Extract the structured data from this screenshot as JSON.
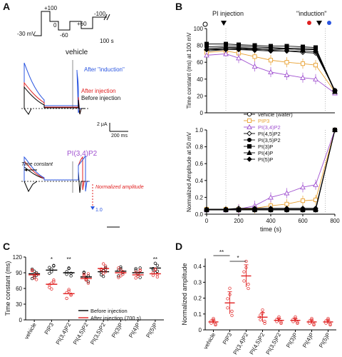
{
  "panels": {
    "A": {
      "label": "A",
      "protocol": {
        "labels": [
          "+100",
          "-30 mV",
          "0",
          "-60",
          "+60",
          "-100",
          "100 s"
        ]
      },
      "vehicle_title": "vehicle",
      "pip2_title": "PI(3,4)P2",
      "legend": {
        "after_induction": "After \"induction\"",
        "after_injection": "After injection",
        "before_injection": "Before injection"
      },
      "scale": {
        "current": "2 μA",
        "time": "200 ms"
      },
      "time_constant_label": "Time constant",
      "normalized_label": "Normalized amplitude",
      "marker_1": "1.0"
    },
    "B": {
      "label": "B",
      "pi_injection": "PI injection",
      "induction": "\"induction\""
    },
    "C": {
      "label": "C"
    },
    "D": {
      "label": "D"
    }
  },
  "colors": {
    "black": "#000000",
    "red": "#e02020",
    "blue": "#2a55e0",
    "orange": "#e8a030",
    "purple": "#a050d0"
  },
  "chart_data": [
    {
      "type": "line",
      "panel": "B-top",
      "xlabel": "",
      "ylabel": "Time constant (ms) at 100 mV",
      "xlim": [
        0,
        800
      ],
      "ylim": [
        0,
        120
      ],
      "x": [
        0,
        120,
        200,
        300,
        400,
        500,
        600,
        680,
        800
      ],
      "series": [
        {
          "name": "vehicle (water)",
          "values": [
            88,
            90,
            91,
            90,
            90,
            91,
            90,
            90,
            32
          ]
        },
        {
          "name": "PIP3",
          "values": [
            86,
            88,
            85,
            80,
            75,
            72,
            70,
            68,
            30
          ]
        },
        {
          "name": "PI(3,4)P2",
          "values": [
            82,
            84,
            78,
            66,
            58,
            54,
            50,
            48,
            28
          ]
        },
        {
          "name": "PI(4,5)P2",
          "values": [
            90,
            92,
            92,
            91,
            89,
            88,
            86,
            85,
            32
          ]
        },
        {
          "name": "PI(3,5)P2",
          "values": [
            94,
            95,
            95,
            94,
            93,
            92,
            92,
            91,
            30
          ]
        },
        {
          "name": "PI(3)P",
          "values": [
            98,
            98,
            97,
            96,
            95,
            95,
            94,
            93,
            31
          ]
        },
        {
          "name": "PI(4)P",
          "values": [
            92,
            93,
            93,
            92,
            92,
            91,
            90,
            90,
            30
          ]
        },
        {
          "name": "PI(5)P",
          "values": [
            90,
            90,
            90,
            89,
            88,
            88,
            88,
            87,
            31
          ]
        }
      ],
      "yticks": [
        "0",
        "20",
        "40",
        "60",
        "80",
        "100"
      ]
    },
    {
      "type": "line",
      "panel": "B-bottom",
      "xlabel": "time (s)",
      "ylabel": "Normalized Amplitude at 50 mV",
      "xlim": [
        0,
        800
      ],
      "ylim": [
        0,
        1.0
      ],
      "x": [
        0,
        120,
        200,
        300,
        400,
        500,
        600,
        680,
        800
      ],
      "series": [
        {
          "name": "vehicle (water)",
          "values": [
            0.06,
            0.06,
            0.06,
            0.06,
            0.06,
            0.06,
            0.06,
            0.06,
            1.0
          ]
        },
        {
          "name": "PIP3",
          "values": [
            0.06,
            0.06,
            0.06,
            0.07,
            0.1,
            0.12,
            0.16,
            0.17,
            1.0
          ]
        },
        {
          "name": "PI(3,4)P2",
          "values": [
            0.05,
            0.05,
            0.06,
            0.1,
            0.2,
            0.25,
            0.32,
            0.35,
            1.0
          ]
        },
        {
          "name": "PI(4,5)P2",
          "values": [
            0.06,
            0.06,
            0.07,
            0.07,
            0.07,
            0.07,
            0.07,
            0.07,
            1.0
          ]
        },
        {
          "name": "PI(3,5)P2",
          "values": [
            0.05,
            0.05,
            0.05,
            0.06,
            0.06,
            0.06,
            0.06,
            0.06,
            1.0
          ]
        },
        {
          "name": "PI(3)P",
          "values": [
            0.05,
            0.05,
            0.05,
            0.05,
            0.05,
            0.05,
            0.05,
            0.05,
            1.0
          ]
        },
        {
          "name": "PI(4)P",
          "values": [
            0.06,
            0.06,
            0.06,
            0.06,
            0.06,
            0.06,
            0.06,
            0.06,
            1.0
          ]
        },
        {
          "name": "PI(5)P",
          "values": [
            0.05,
            0.05,
            0.05,
            0.05,
            0.05,
            0.05,
            0.05,
            0.05,
            1.0
          ]
        }
      ],
      "yticks": [
        "0.0",
        "0.2",
        "0.4",
        "0.6",
        "0.8",
        "1.0"
      ],
      "xticks": [
        "0",
        "200",
        "400",
        "600",
        "800"
      ]
    },
    {
      "type": "scatter",
      "panel": "C",
      "ylabel": "Time constant (ms)",
      "ylim": [
        0,
        120
      ],
      "yticks": [
        "0",
        "30",
        "60",
        "90",
        "120"
      ],
      "categories": [
        "vehicle",
        "PIP3",
        "PI(3,4)P2",
        "PI(4,5)P2",
        "PI(3,5)P2",
        "PI(3)P",
        "PI(4)P",
        "PI(5)P"
      ],
      "series": [
        {
          "name": "Before injection",
          "values": [
            88,
            95,
            90,
            82,
            92,
            93,
            90,
            99
          ]
        },
        {
          "name": "After injection (700 s)",
          "values": [
            86,
            68,
            50,
            79,
            98,
            90,
            86,
            88
          ]
        }
      ],
      "significance": [
        {
          "category": "PIP3",
          "label": "*"
        },
        {
          "category": "PI(3,4)P2",
          "label": "**"
        },
        {
          "category": "PI(5)P",
          "label": "**"
        }
      ],
      "legend": [
        "Before injection",
        "After injection (700 s)"
      ]
    },
    {
      "type": "scatter",
      "panel": "D",
      "ylabel": "Normalized amplitude",
      "ylim": [
        0,
        0.45
      ],
      "yticks": [
        "0",
        "0.1",
        "0.2",
        "0.3",
        "0.4"
      ],
      "categories": [
        "vehicle",
        "PIP3",
        "PI(3,4)P2",
        "PI(4,5)P2",
        "PI(3,5)P2",
        "PI(3)P",
        "PI(4)P",
        "PI(5)P"
      ],
      "values": [
        0.05,
        0.17,
        0.34,
        0.08,
        0.06,
        0.06,
        0.05,
        0.05
      ],
      "errors": [
        0.01,
        0.07,
        0.07,
        0.03,
        0.01,
        0.01,
        0.01,
        0.01
      ],
      "significance": [
        {
          "label": "**",
          "between": [
            "vehicle",
            "PIP3"
          ]
        },
        {
          "label": "*",
          "between": [
            "PIP3",
            "PI(3,4)P2"
          ]
        }
      ]
    }
  ]
}
